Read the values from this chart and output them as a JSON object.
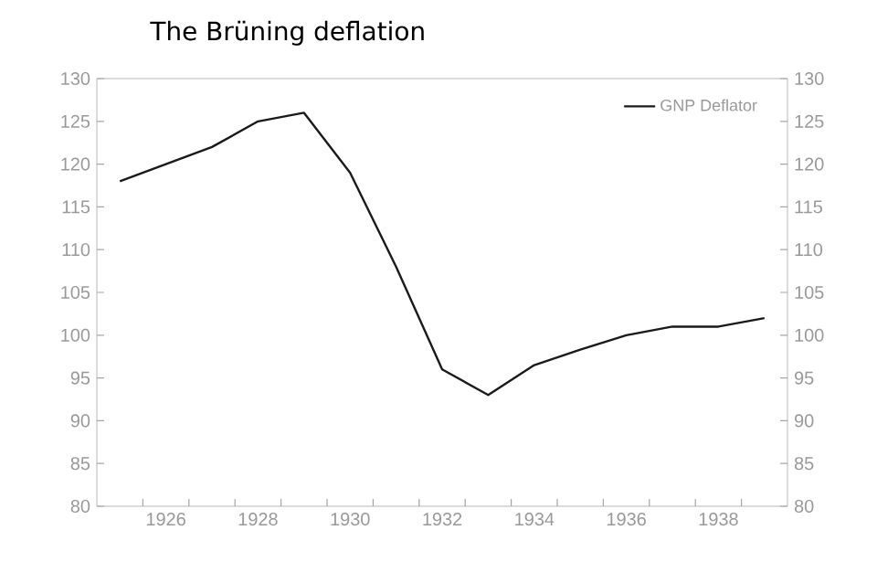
{
  "chart_data": {
    "type": "line",
    "title": "The Brüning deflation",
    "x": [
      1925,
      1926,
      1927,
      1928,
      1929,
      1930,
      1931,
      1932,
      1933,
      1934,
      1935,
      1936,
      1937,
      1938,
      1939
    ],
    "series": [
      {
        "name": "GNP Deflator",
        "color": "#1a1a1a",
        "values": [
          118,
          120,
          122,
          125,
          126,
          119,
          108,
          96,
          93,
          96.5,
          98.3,
          100,
          101,
          101,
          102
        ]
      }
    ],
    "xlim": [
      1924.5,
      1939.5
    ],
    "xticks": [
      {
        "value": 1925.5,
        "label": null
      },
      {
        "value": 1926,
        "label": "1926"
      },
      {
        "value": 1926.5,
        "label": null
      },
      {
        "value": 1927.5,
        "label": null
      },
      {
        "value": 1928,
        "label": "1928"
      },
      {
        "value": 1928.5,
        "label": null
      },
      {
        "value": 1929.5,
        "label": null
      },
      {
        "value": 1930,
        "label": "1930"
      },
      {
        "value": 1930.5,
        "label": null
      },
      {
        "value": 1931.5,
        "label": null
      },
      {
        "value": 1932,
        "label": "1932"
      },
      {
        "value": 1932.5,
        "label": null
      },
      {
        "value": 1933.5,
        "label": null
      },
      {
        "value": 1934,
        "label": "1934"
      },
      {
        "value": 1934.5,
        "label": null
      },
      {
        "value": 1935.5,
        "label": null
      },
      {
        "value": 1936,
        "label": "1936"
      },
      {
        "value": 1936.5,
        "label": null
      },
      {
        "value": 1937.5,
        "label": null
      },
      {
        "value": 1938,
        "label": "1938"
      },
      {
        "value": 1938.5,
        "label": null
      }
    ],
    "ylim": [
      80,
      130
    ],
    "yticks": [
      80,
      85,
      90,
      95,
      100,
      105,
      110,
      115,
      120,
      125,
      130
    ],
    "y2lim": [
      80,
      130
    ],
    "y2ticks": [
      80,
      85,
      90,
      95,
      100,
      105,
      110,
      115,
      120,
      125,
      130
    ],
    "legend": "top right",
    "grid": false,
    "marker": "none",
    "line_style": "solid"
  }
}
